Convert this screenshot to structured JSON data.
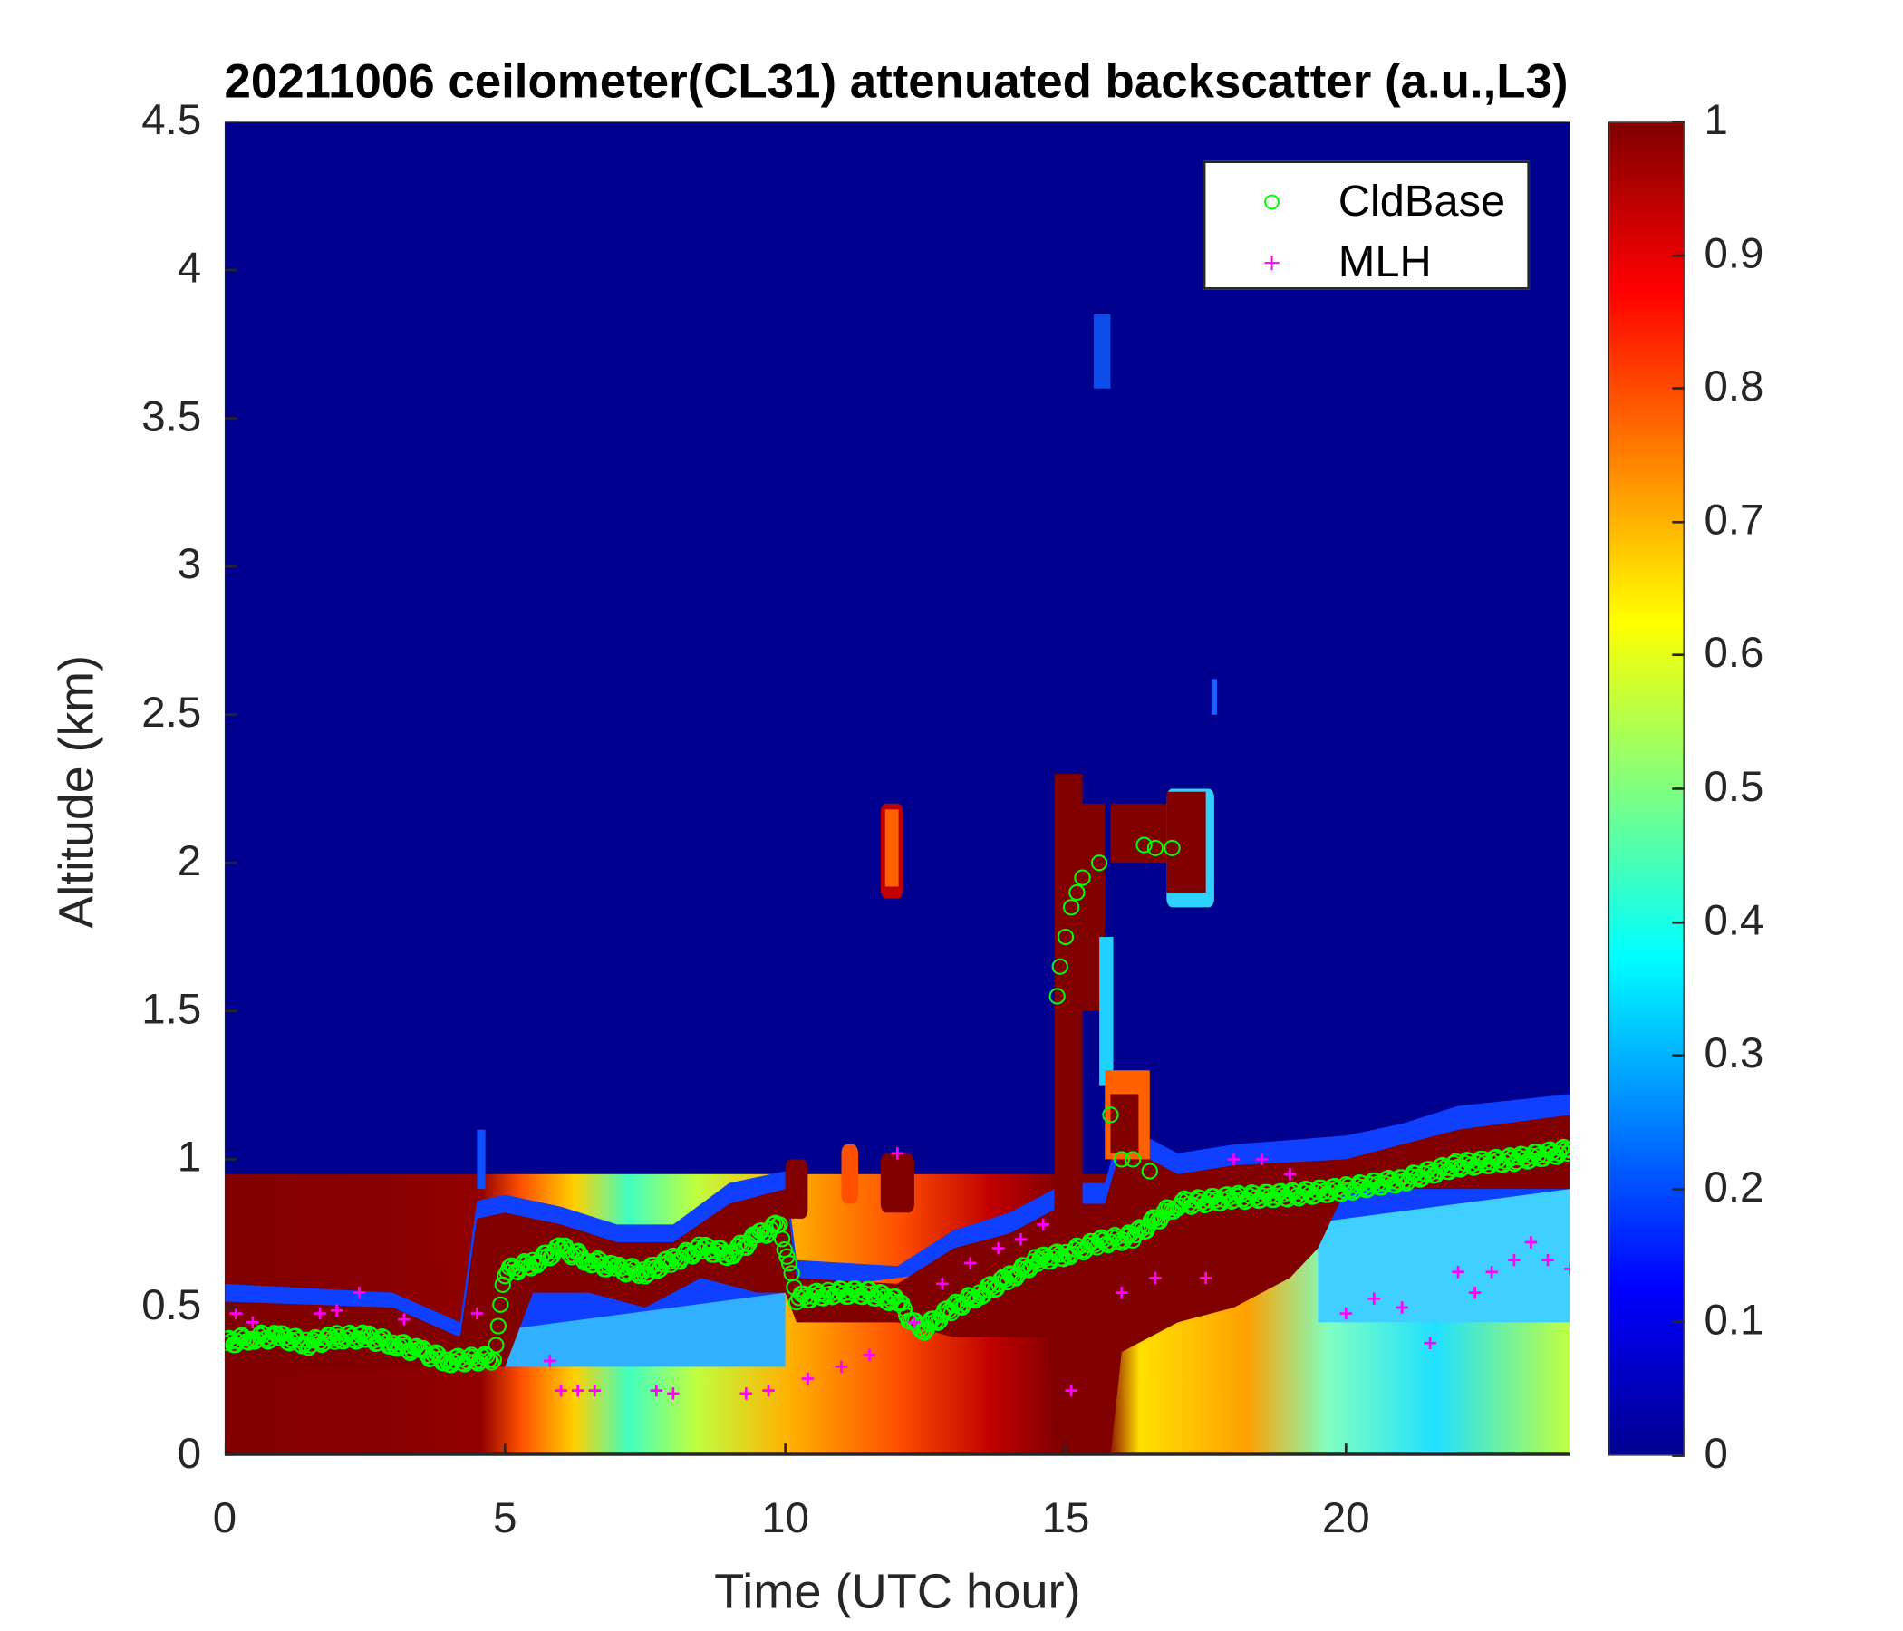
{
  "chart_data": {
    "type": "heatmap",
    "title": "20211006 ceilometer(CL31) attenuated backscatter (a.u.,L3)",
    "xlabel": "Time (UTC hour)",
    "ylabel": "Altitude (km)",
    "xlim": [
      0,
      24
    ],
    "ylim": [
      0,
      4.5
    ],
    "xticks": [
      "0",
      "5",
      "10",
      "15",
      "20"
    ],
    "yticks": [
      "0",
      "0.5",
      "1",
      "1.5",
      "2",
      "2.5",
      "3",
      "3.5",
      "4",
      "4.5"
    ],
    "colorbar": {
      "range": [
        0,
        1
      ],
      "ticks": [
        "0",
        "0.1",
        "0.2",
        "0.3",
        "0.4",
        "0.5",
        "0.6",
        "0.7",
        "0.8",
        "0.9",
        "1"
      ],
      "colormap": "jet"
    },
    "legend": {
      "position": "top-right",
      "entries": [
        {
          "label": "CldBase",
          "marker": "circle",
          "color": "#00ff00"
        },
        {
          "label": "MLH",
          "marker": "plus",
          "color": "#ff00ff"
        }
      ]
    },
    "series": [
      {
        "name": "CldBase",
        "points": [
          [
            0,
            0.38
          ],
          [
            0.5,
            0.4
          ],
          [
            1,
            0.4
          ],
          [
            1.5,
            0.38
          ],
          [
            2,
            0.4
          ],
          [
            2.5,
            0.4
          ],
          [
            3,
            0.38
          ],
          [
            3.5,
            0.35
          ],
          [
            4,
            0.32
          ],
          [
            4.8,
            0.33
          ],
          [
            5,
            0.62
          ],
          [
            5.5,
            0.65
          ],
          [
            6,
            0.7
          ],
          [
            6.5,
            0.66
          ],
          [
            7,
            0.63
          ],
          [
            7.5,
            0.62
          ],
          [
            8,
            0.66
          ],
          [
            8.5,
            0.7
          ],
          [
            9,
            0.68
          ],
          [
            9.5,
            0.74
          ],
          [
            9.9,
            0.78
          ],
          [
            10.2,
            0.53
          ],
          [
            10.8,
            0.55
          ],
          [
            11.5,
            0.55
          ],
          [
            12,
            0.52
          ],
          [
            12.4,
            0.42
          ],
          [
            13,
            0.5
          ],
          [
            13.5,
            0.55
          ],
          [
            14,
            0.6
          ],
          [
            14.5,
            0.66
          ],
          [
            15,
            0.68
          ],
          [
            15.6,
            0.72
          ],
          [
            16.2,
            0.74
          ],
          [
            17,
            0.85
          ],
          [
            18,
            0.87
          ],
          [
            19,
            0.88
          ],
          [
            20,
            0.9
          ],
          [
            21,
            0.93
          ],
          [
            22,
            0.98
          ],
          [
            23,
            1.0
          ],
          [
            24,
            1.03
          ]
        ]
      },
      {
        "name": "CldBase-upper",
        "points": [
          [
            14.85,
            1.55
          ],
          [
            14.9,
            1.65
          ],
          [
            15,
            1.75
          ],
          [
            15.1,
            1.85
          ],
          [
            15.2,
            1.9
          ],
          [
            15.3,
            1.95
          ],
          [
            15.6,
            2.0
          ],
          [
            15.8,
            1.15
          ],
          [
            16,
            1.0
          ],
          [
            16.2,
            1.0
          ],
          [
            16.4,
            2.06
          ],
          [
            16.6,
            2.05
          ],
          [
            16.9,
            2.05
          ],
          [
            16.5,
            0.96
          ]
        ]
      },
      {
        "name": "MLH",
        "points": [
          [
            0.2,
            0.48
          ],
          [
            0.5,
            0.45
          ],
          [
            1.7,
            0.48
          ],
          [
            2,
            0.49
          ],
          [
            2.4,
            0.55
          ],
          [
            3.2,
            0.46
          ],
          [
            4.5,
            0.48
          ],
          [
            5.8,
            0.32
          ],
          [
            6,
            0.22
          ],
          [
            6.3,
            0.22
          ],
          [
            6.6,
            0.22
          ],
          [
            7.7,
            0.22
          ],
          [
            8,
            0.21
          ],
          [
            9.3,
            0.21
          ],
          [
            9.7,
            0.22
          ],
          [
            10.4,
            0.26
          ],
          [
            11,
            0.3
          ],
          [
            11.5,
            0.34
          ],
          [
            12,
            1.02
          ],
          [
            12.3,
            0.45
          ],
          [
            12.8,
            0.58
          ],
          [
            13.3,
            0.65
          ],
          [
            13.8,
            0.7
          ],
          [
            14.2,
            0.73
          ],
          [
            14.6,
            0.78
          ],
          [
            15.1,
            0.22
          ],
          [
            16,
            0.55
          ],
          [
            16.6,
            0.6
          ],
          [
            17.5,
            0.6
          ],
          [
            18,
            1.0
          ],
          [
            18.5,
            1.0
          ],
          [
            19,
            0.95
          ],
          [
            20,
            0.48
          ],
          [
            20.5,
            0.53
          ],
          [
            21,
            0.5
          ],
          [
            21.5,
            0.38
          ],
          [
            22,
            0.62
          ],
          [
            22.3,
            0.55
          ],
          [
            22.6,
            0.62
          ],
          [
            23,
            0.66
          ],
          [
            23.3,
            0.72
          ],
          [
            23.6,
            0.66
          ],
          [
            24,
            0.63
          ]
        ]
      }
    ]
  }
}
